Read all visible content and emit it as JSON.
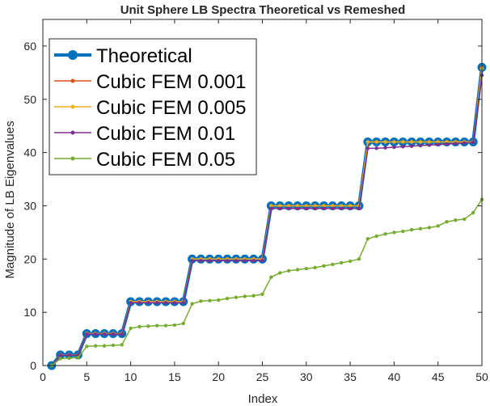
{
  "chart_data": {
    "type": "line",
    "title": "Unit Sphere LB Spectra Theoretical vs Remeshed",
    "xlabel": "Index",
    "ylabel": "Magnitude of LB Eigenvalues",
    "xlim": [
      0,
      50
    ],
    "ylim": [
      0,
      65
    ],
    "xticks": [
      0,
      5,
      10,
      15,
      20,
      25,
      30,
      35,
      40,
      45,
      50
    ],
    "yticks": [
      0,
      10,
      20,
      30,
      40,
      50,
      60
    ],
    "legend_position": "top-left",
    "x": [
      1,
      2,
      3,
      4,
      5,
      6,
      7,
      8,
      9,
      10,
      11,
      12,
      13,
      14,
      15,
      16,
      17,
      18,
      19,
      20,
      21,
      22,
      23,
      24,
      25,
      26,
      27,
      28,
      29,
      30,
      31,
      32,
      33,
      34,
      35,
      36,
      37,
      38,
      39,
      40,
      41,
      42,
      43,
      44,
      45,
      46,
      47,
      48,
      49,
      50
    ],
    "series": [
      {
        "name": "Theoretical",
        "color": "#0072BD",
        "values": [
          0,
          2,
          2,
          2,
          6,
          6,
          6,
          6,
          6,
          12,
          12,
          12,
          12,
          12,
          12,
          12,
          20,
          20,
          20,
          20,
          20,
          20,
          20,
          20,
          20,
          30,
          30,
          30,
          30,
          30,
          30,
          30,
          30,
          30,
          30,
          30,
          42,
          42,
          42,
          42,
          42,
          42,
          42,
          42,
          42,
          42,
          42,
          42,
          42,
          56
        ]
      },
      {
        "name": "Cubic FEM 0.001",
        "color": "#D95319",
        "values": [
          0,
          2,
          2,
          2,
          6,
          6,
          6,
          6,
          6,
          12,
          12,
          12,
          12,
          12,
          12,
          12,
          20,
          20,
          20,
          20,
          20,
          20,
          20,
          20,
          20,
          30,
          30,
          30,
          30,
          30,
          30,
          30,
          30,
          30,
          30,
          30,
          42,
          42,
          42,
          42,
          42,
          42,
          42,
          42,
          42,
          42,
          42,
          42,
          42,
          56
        ]
      },
      {
        "name": "Cubic FEM 0.005",
        "color": "#EDB120",
        "values": [
          0,
          2,
          2,
          2,
          6,
          6,
          6,
          6,
          6,
          12,
          12,
          12,
          12,
          12,
          12,
          12,
          20,
          20,
          20,
          20,
          20,
          20,
          20,
          20,
          20,
          30,
          30,
          30,
          30,
          30,
          30,
          30,
          30,
          30,
          30,
          30,
          42,
          42,
          42,
          42,
          42,
          42,
          42,
          42,
          42,
          42,
          42,
          42,
          42,
          55.8
        ]
      },
      {
        "name": "Cubic FEM 0.01",
        "color": "#7E2F8E",
        "values": [
          0,
          1.95,
          1.95,
          1.95,
          5.9,
          5.9,
          5.9,
          5.9,
          5.9,
          11.8,
          11.8,
          11.8,
          11.8,
          11.8,
          11.8,
          11.8,
          19.7,
          19.7,
          19.7,
          19.7,
          19.7,
          19.7,
          19.7,
          19.7,
          19.7,
          29.5,
          29.5,
          29.5,
          29.5,
          29.5,
          29.5,
          29.5,
          29.5,
          29.5,
          29.5,
          29.5,
          40.8,
          40.8,
          40.9,
          41.0,
          41.1,
          41.2,
          41.3,
          41.4,
          41.5,
          41.6,
          41.7,
          41.8,
          41.9,
          54.5
        ]
      },
      {
        "name": "Cubic FEM 0.05",
        "color": "#77AC30",
        "values": [
          0,
          1.3,
          1.4,
          1.5,
          3.6,
          3.7,
          3.7,
          3.8,
          3.9,
          7.0,
          7.3,
          7.4,
          7.5,
          7.5,
          7.6,
          7.9,
          11.6,
          12.1,
          12.2,
          12.3,
          12.6,
          12.8,
          13.0,
          13.1,
          13.4,
          16.6,
          17.4,
          17.8,
          18.0,
          18.2,
          18.4,
          18.7,
          19.0,
          19.3,
          19.6,
          20.0,
          23.8,
          24.3,
          24.7,
          25.0,
          25.2,
          25.5,
          25.7,
          25.9,
          26.2,
          27.0,
          27.3,
          27.5,
          28.7,
          31.2
        ]
      }
    ]
  }
}
